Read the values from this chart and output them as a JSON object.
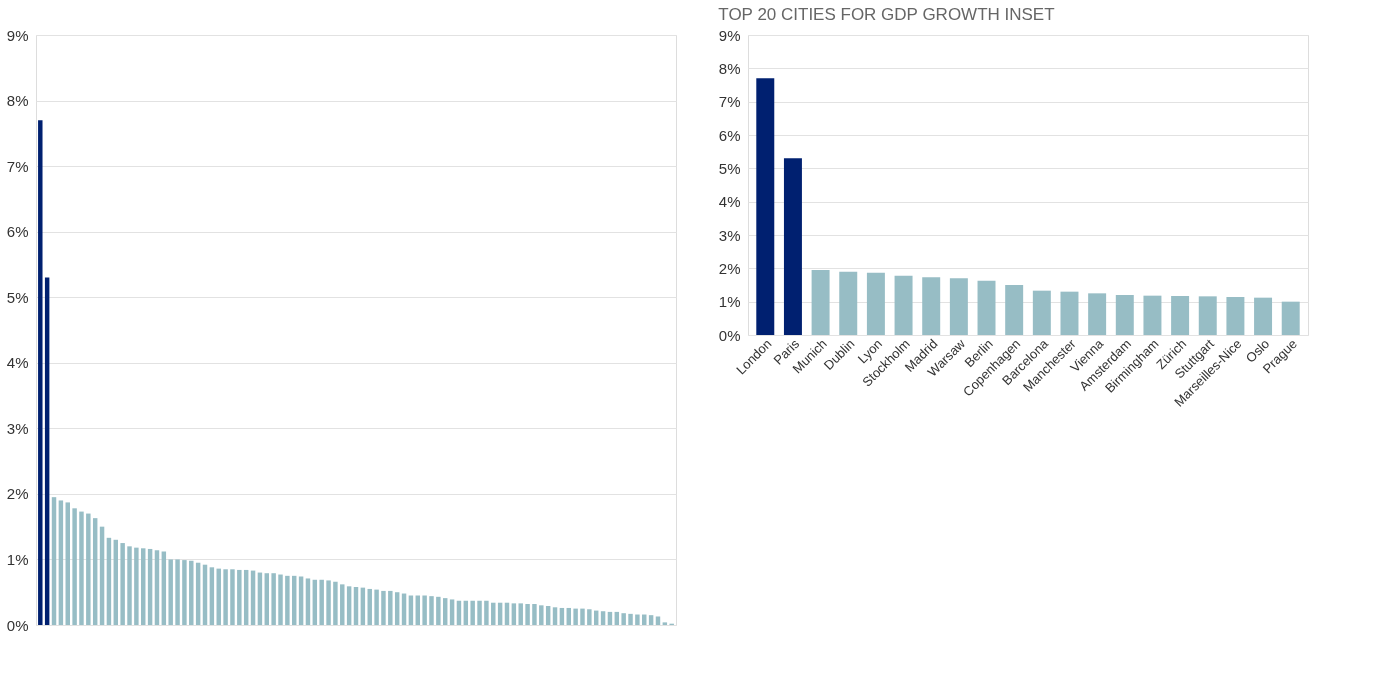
{
  "chart_data": [
    {
      "type": "bar",
      "categories": [
        null,
        null,
        null,
        null,
        null,
        null,
        null,
        null,
        null,
        null,
        null,
        null,
        null,
        null,
        null,
        null,
        null,
        null,
        null,
        null,
        null,
        null,
        null,
        null,
        null,
        null,
        null,
        null,
        null,
        null,
        null,
        null,
        null,
        null,
        null,
        null,
        null,
        null,
        null,
        null,
        null,
        null,
        null,
        null,
        null,
        null,
        null,
        null,
        null,
        null,
        null,
        null,
        null,
        null,
        null,
        null,
        null,
        null,
        null,
        null,
        null,
        null,
        null,
        null,
        null,
        null,
        null,
        null,
        null,
        null,
        null,
        null,
        null,
        null,
        null,
        null,
        null,
        null,
        null,
        null,
        null,
        null,
        null,
        null,
        null,
        null,
        null,
        null,
        null,
        null,
        null,
        null,
        null
      ],
      "values": [
        7.7,
        5.3,
        1.95,
        1.9,
        1.87,
        1.78,
        1.73,
        1.7,
        1.63,
        1.5,
        1.33,
        1.3,
        1.25,
        1.2,
        1.18,
        1.17,
        1.16,
        1.14,
        1.12,
        1.0,
        1.0,
        0.99,
        0.98,
        0.95,
        0.92,
        0.88,
        0.86,
        0.85,
        0.85,
        0.84,
        0.84,
        0.83,
        0.8,
        0.79,
        0.79,
        0.77,
        0.75,
        0.75,
        0.74,
        0.71,
        0.69,
        0.69,
        0.68,
        0.66,
        0.62,
        0.59,
        0.58,
        0.57,
        0.55,
        0.54,
        0.52,
        0.52,
        0.5,
        0.48,
        0.45,
        0.45,
        0.45,
        0.44,
        0.43,
        0.41,
        0.39,
        0.37,
        0.37,
        0.37,
        0.37,
        0.37,
        0.34,
        0.34,
        0.34,
        0.33,
        0.33,
        0.32,
        0.32,
        0.3,
        0.29,
        0.27,
        0.26,
        0.26,
        0.25,
        0.25,
        0.24,
        0.22,
        0.21,
        0.2,
        0.2,
        0.18,
        0.17,
        0.16,
        0.16,
        0.15,
        0.13,
        0.04,
        0.02
      ],
      "colors": [
        "#002070",
        "#002070",
        "#97bdc5",
        "#97bdc5",
        "#97bdc5",
        "#97bdc5",
        "#97bdc5",
        "#97bdc5",
        "#97bdc5",
        "#97bdc5",
        "#97bdc5",
        "#97bdc5",
        "#97bdc5",
        "#97bdc5",
        "#97bdc5",
        "#97bdc5",
        "#97bdc5",
        "#97bdc5",
        "#97bdc5",
        "#97bdc5",
        "#97bdc5",
        "#97bdc5",
        "#97bdc5",
        "#97bdc5",
        "#97bdc5",
        "#97bdc5",
        "#97bdc5",
        "#97bdc5",
        "#97bdc5",
        "#97bdc5",
        "#97bdc5",
        "#97bdc5",
        "#97bdc5",
        "#97bdc5",
        "#97bdc5",
        "#97bdc5",
        "#97bdc5",
        "#97bdc5",
        "#97bdc5",
        "#97bdc5",
        "#97bdc5",
        "#97bdc5",
        "#97bdc5",
        "#97bdc5",
        "#97bdc5",
        "#97bdc5",
        "#97bdc5",
        "#97bdc5",
        "#97bdc5",
        "#97bdc5",
        "#97bdc5",
        "#97bdc5",
        "#97bdc5",
        "#97bdc5",
        "#97bdc5",
        "#97bdc5",
        "#97bdc5",
        "#97bdc5",
        "#97bdc5",
        "#97bdc5",
        "#97bdc5",
        "#97bdc5",
        "#97bdc5",
        "#97bdc5",
        "#97bdc5",
        "#97bdc5",
        "#97bdc5",
        "#97bdc5",
        "#97bdc5",
        "#97bdc5",
        "#97bdc5",
        "#97bdc5",
        "#97bdc5",
        "#97bdc5",
        "#97bdc5",
        "#97bdc5",
        "#97bdc5",
        "#97bdc5",
        "#97bdc5",
        "#97bdc5",
        "#97bdc5",
        "#97bdc5",
        "#97bdc5",
        "#97bdc5",
        "#97bdc5",
        "#97bdc5",
        "#97bdc5",
        "#97bdc5",
        "#97bdc5",
        "#97bdc5",
        "#97bdc5",
        "#97bdc5",
        "#97bdc5"
      ],
      "ylim": [
        0,
        9
      ],
      "yticks": [
        {
          "value": 0,
          "label": "0%"
        },
        {
          "value": 1,
          "label": "1%"
        },
        {
          "value": 2,
          "label": "2%"
        },
        {
          "value": 3,
          "label": "3%"
        },
        {
          "value": 4,
          "label": "4%"
        },
        {
          "value": 5,
          "label": "5%"
        },
        {
          "value": 6,
          "label": "6%"
        },
        {
          "value": 7,
          "label": "7%"
        },
        {
          "value": 8,
          "label": "8%"
        },
        {
          "value": 9,
          "label": "9%"
        }
      ],
      "grid": "y",
      "legend": false,
      "tick_labels": "y"
    },
    {
      "type": "bar",
      "title": "TOP 20 CITIES FOR GDP GROWTH INSET",
      "categories": [
        "London",
        "Paris",
        "Munich",
        "Dublin",
        "Lyon",
        "Stockholm",
        "Madrid",
        "Warsaw",
        "Berlin",
        "Copenhagen",
        "Barcelona",
        "Manchester",
        "Vienna",
        "Amsterdam",
        "Birmingham",
        "Zürich",
        "Stuttgart",
        "Marseilles-Nice",
        "Oslo",
        "Prague"
      ],
      "values": [
        7.7,
        5.3,
        1.95,
        1.9,
        1.87,
        1.78,
        1.73,
        1.7,
        1.63,
        1.5,
        1.33,
        1.3,
        1.25,
        1.2,
        1.18,
        1.17,
        1.16,
        1.14,
        1.12,
        1.0
      ],
      "colors": [
        "#002070",
        "#002070",
        "#97bdc5",
        "#97bdc5",
        "#97bdc5",
        "#97bdc5",
        "#97bdc5",
        "#97bdc5",
        "#97bdc5",
        "#97bdc5",
        "#97bdc5",
        "#97bdc5",
        "#97bdc5",
        "#97bdc5",
        "#97bdc5",
        "#97bdc5",
        "#97bdc5",
        "#97bdc5",
        "#97bdc5",
        "#97bdc5"
      ],
      "ylim": [
        0,
        9
      ],
      "yticks": [
        {
          "value": 0,
          "label": "0%"
        },
        {
          "value": 1,
          "label": "1%"
        },
        {
          "value": 2,
          "label": "2%"
        },
        {
          "value": 3,
          "label": "3%"
        },
        {
          "value": 4,
          "label": "4%"
        },
        {
          "value": 5,
          "label": "5%"
        },
        {
          "value": 6,
          "label": "6%"
        },
        {
          "value": 7,
          "label": "7%"
        },
        {
          "value": 8,
          "label": "8%"
        },
        {
          "value": 9,
          "label": "9%"
        }
      ],
      "grid": "y",
      "legend": false
    }
  ]
}
